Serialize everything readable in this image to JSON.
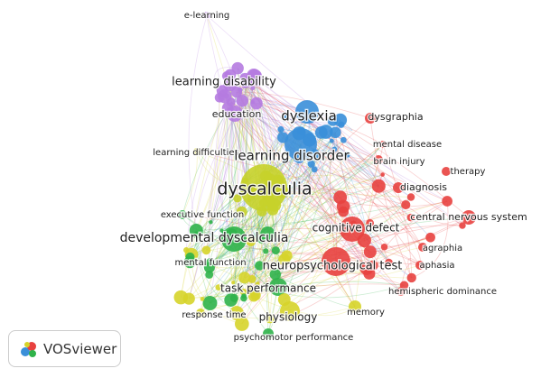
{
  "nodes": [
    {
      "label": "e-learning",
      "color": "#b57be0"
    },
    {
      "label": "learning disability",
      "color": "#b57be0"
    },
    {
      "label": "education",
      "color": "#b57be0"
    },
    {
      "label": "dyslexia",
      "color": "#3a8fd9"
    },
    {
      "label": "dysgraphia",
      "color": "#e8413f"
    },
    {
      "label": "mental disease",
      "color": "#e8413f"
    },
    {
      "label": "learning difficulties",
      "color": "#d6d42a"
    },
    {
      "label": "learning disorder",
      "color": "#3a8fd9"
    },
    {
      "label": "brain injury",
      "color": "#e8413f"
    },
    {
      "label": "therapy",
      "color": "#e8413f"
    },
    {
      "label": "dyscalculia",
      "color": "#c6d12a"
    },
    {
      "label": "diagnosis",
      "color": "#e8413f"
    },
    {
      "label": "executive function",
      "color": "#2fb34a"
    },
    {
      "label": "central nervous system",
      "color": "#e8413f"
    },
    {
      "label": "cognitive defect",
      "color": "#e8413f"
    },
    {
      "label": "developmental dyscalculia",
      "color": "#2fb34a"
    },
    {
      "label": "agraphia",
      "color": "#e8413f"
    },
    {
      "label": "neuropsychological test",
      "color": "#e8413f"
    },
    {
      "label": "aphasia",
      "color": "#e8413f"
    },
    {
      "label": "mental function",
      "color": "#2fb34a"
    },
    {
      "label": "task performance",
      "color": "#2fb34a"
    },
    {
      "label": "hemispheric dominance",
      "color": "#e8413f"
    },
    {
      "label": "response time",
      "color": "#d6d42a"
    },
    {
      "label": "physiology",
      "color": "#d6d42a"
    },
    {
      "label": "memory",
      "color": "#d6d42a"
    },
    {
      "label": "psychomotor performance",
      "color": "#2fb34a"
    }
  ],
  "logo": {
    "text": "VOSviewer"
  }
}
